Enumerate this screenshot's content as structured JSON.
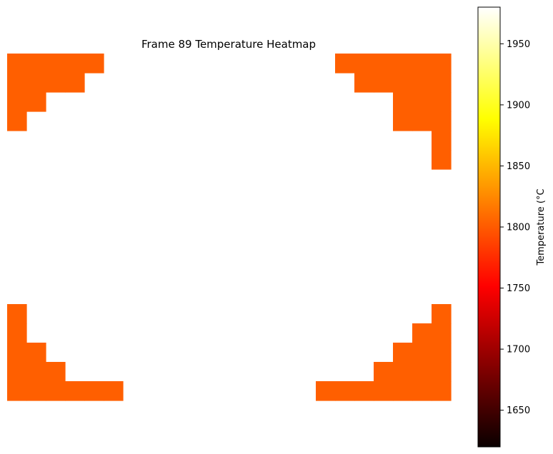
{
  "chart_data": {
    "type": "heatmap",
    "title": "Frame 89 Temperature Heatmap",
    "colorbar": {
      "label": "Temperature (°C",
      "colormap": "hot",
      "range": [
        1620,
        1980
      ],
      "ticks": [
        1650,
        1700,
        1750,
        1800,
        1850,
        1900,
        1950
      ]
    },
    "grid": {
      "rows": 18,
      "cols": 23
    },
    "cell_value": 1820,
    "cell_color": "#ff5f00",
    "cells_present": [
      [
        0,
        0,
        5
      ],
      [
        0,
        17,
        23
      ],
      [
        1,
        0,
        4
      ],
      [
        1,
        18,
        23
      ],
      [
        2,
        0,
        2
      ],
      [
        2,
        20,
        23
      ],
      [
        3,
        0,
        1
      ],
      [
        3,
        20,
        23
      ],
      [
        4,
        22,
        23
      ],
      [
        5,
        22,
        23
      ],
      [
        13,
        0,
        1
      ],
      [
        13,
        22,
        23
      ],
      [
        14,
        0,
        1
      ],
      [
        14,
        21,
        23
      ],
      [
        15,
        0,
        2
      ],
      [
        15,
        20,
        23
      ],
      [
        16,
        0,
        3
      ],
      [
        16,
        19,
        23
      ],
      [
        17,
        0,
        6
      ],
      [
        17,
        16,
        23
      ]
    ]
  }
}
